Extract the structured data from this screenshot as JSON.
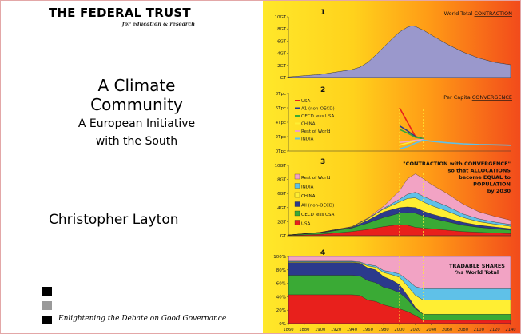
{
  "cover": {
    "publisher": "THE FEDERAL TRUST",
    "publisher_tagline": "for education & research",
    "title_line1": "A Climate",
    "title_line2": "Community",
    "subtitle_line1": "A European Initiative",
    "subtitle_line2": "with the South",
    "author": "Christopher Layton",
    "motto": "Enlightening the Debate on Good Governance"
  },
  "colors": {
    "square_1": "#000000",
    "square_2": "#9a9a9a",
    "square_3": "#000000",
    "contraction_fill": "#9a98cc",
    "usa": "#e8201c",
    "a1_non_oecd": "#2b3a8c",
    "oecd_less_usa": "#3aaa35",
    "china": "#ffee33",
    "india": "#5fc1e8",
    "rest_of_world": "#f2a3c4",
    "highlight": "#ffee33"
  },
  "chart_data": [
    {
      "type": "area",
      "panel_number": "1",
      "title": "World Total ",
      "title_underlined": "CONTRACTION",
      "ylim": [
        0,
        10
      ],
      "y_ticks": [
        "10GT",
        "8GT",
        "6GT",
        "4GT",
        "2GT",
        "GT"
      ],
      "x": [
        1860,
        1880,
        1900,
        1920,
        1940,
        1950,
        1960,
        1970,
        1980,
        1990,
        2000,
        2010,
        2015,
        2020,
        2030,
        2040,
        2060,
        2080,
        2100,
        2120,
        2140
      ],
      "values": [
        0.1,
        0.3,
        0.5,
        0.9,
        1.3,
        1.7,
        2.5,
        3.7,
        5.0,
        6.3,
        7.5,
        8.3,
        8.5,
        8.4,
        7.8,
        7.0,
        5.5,
        4.2,
        3.2,
        2.5,
        2.1
      ]
    },
    {
      "type": "line",
      "panel_number": "2",
      "title": "Per Capita ",
      "title_underlined": "CONVERGENCE",
      "ylim": [
        0,
        8
      ],
      "y_ticks": [
        "8Tpc",
        "6Tpc",
        "4Tpc",
        "2Tpc",
        "0Tpc"
      ],
      "legend": [
        "USA",
        "A1 (non-OECD)",
        "OECD less USA",
        "CHINA",
        "Rest of World",
        "INDIA"
      ],
      "series": [
        {
          "name": "USA",
          "x": [
            2000,
            2010,
            2020,
            2030
          ],
          "values": [
            6.0,
            4.0,
            2.0,
            1.7
          ]
        },
        {
          "name": "A1 (non-OECD)",
          "x": [
            2000,
            2010,
            2020,
            2030
          ],
          "values": [
            3.5,
            2.8,
            2.0,
            1.7
          ]
        },
        {
          "name": "OECD less USA",
          "x": [
            2000,
            2010,
            2020,
            2030
          ],
          "values": [
            3.0,
            2.5,
            1.9,
            1.7
          ]
        },
        {
          "name": "CHINA",
          "x": [
            2000,
            2010,
            2020,
            2030
          ],
          "values": [
            0.8,
            1.1,
            1.4,
            1.6
          ]
        },
        {
          "name": "Rest of World",
          "x": [
            2000,
            2010,
            2020,
            2030
          ],
          "values": [
            1.2,
            1.3,
            1.5,
            1.6
          ]
        },
        {
          "name": "INDIA",
          "x": [
            2000,
            2010,
            2020,
            2030,
            2040,
            2060,
            2080,
            2100,
            2120,
            2140
          ],
          "values": [
            0.3,
            0.6,
            1.1,
            1.5,
            1.35,
            1.15,
            1.0,
            0.9,
            0.85,
            0.8
          ]
        }
      ]
    },
    {
      "type": "area",
      "panel_number": "3",
      "annotation": [
        "\"CONTRACTION with CONVERGENCE\"",
        "so that ALLOCATIONS",
        "become EQUAL to",
        "POPULATION",
        "by 2030"
      ],
      "ylim": [
        0,
        10
      ],
      "y_ticks": [
        "10GT",
        "8GT",
        "6GT",
        "4GT",
        "2GT",
        "GT"
      ],
      "legend": [
        "Rest of World",
        "INDIA",
        "CHINA",
        "All (non-OECD)",
        "OECD less USA",
        "USA"
      ],
      "x": [
        1860,
        1900,
        1940,
        1960,
        1980,
        2000,
        2010,
        2020,
        2030,
        2040,
        2060,
        2080,
        2100,
        2120,
        2140
      ],
      "series": [
        {
          "name": "USA",
          "values": [
            0.05,
            0.2,
            0.6,
            0.9,
            1.3,
            1.6,
            1.5,
            1.2,
            1.1,
            1.0,
            0.8,
            0.6,
            0.5,
            0.4,
            0.3
          ]
        },
        {
          "name": "OECD less USA",
          "values": [
            0.05,
            0.2,
            0.5,
            0.9,
            1.3,
            1.6,
            1.8,
            2.0,
            1.7,
            1.5,
            1.2,
            0.9,
            0.7,
            0.6,
            0.5
          ]
        },
        {
          "name": "All (non-OECD)",
          "values": [
            0.0,
            0.05,
            0.1,
            0.4,
            0.8,
            0.8,
            0.8,
            0.8,
            0.7,
            0.6,
            0.5,
            0.4,
            0.3,
            0.25,
            0.2
          ]
        },
        {
          "name": "CHINA",
          "values": [
            0.0,
            0.02,
            0.05,
            0.2,
            0.4,
            0.8,
            1.2,
            1.4,
            1.3,
            1.2,
            1.0,
            0.7,
            0.5,
            0.4,
            0.35
          ]
        },
        {
          "name": "INDIA",
          "values": [
            0.0,
            0.01,
            0.02,
            0.05,
            0.1,
            0.4,
            0.6,
            0.8,
            0.8,
            0.8,
            0.7,
            0.5,
            0.4,
            0.3,
            0.25
          ]
        },
        {
          "name": "Rest of World",
          "values": [
            0.0,
            0.02,
            0.03,
            0.06,
            0.3,
            1.2,
            2.2,
            2.6,
            2.5,
            2.2,
            1.8,
            1.4,
            1.0,
            0.8,
            0.6
          ]
        }
      ]
    },
    {
      "type": "area",
      "panel_number": "4",
      "annotation": [
        "TRADABLE SHARES",
        "%s World Total"
      ],
      "ylim": [
        0,
        100
      ],
      "y_ticks": [
        "100%",
        "80%",
        "60%",
        "40%",
        "20%",
        "0%"
      ],
      "x": [
        1860,
        1940,
        1950,
        1960,
        1970,
        1980,
        1990,
        2000,
        2010,
        2020,
        2030,
        2140
      ],
      "x_ticks": [
        1860,
        1880,
        1900,
        1920,
        1940,
        1960,
        1980,
        2000,
        2020,
        2040,
        2060,
        2080,
        2100,
        2120,
        2140
      ],
      "series": [
        {
          "name": "USA",
          "values": [
            43,
            43,
            42,
            35,
            33,
            28,
            25,
            22,
            18,
            12,
            5,
            5
          ]
        },
        {
          "name": "OECD less USA",
          "values": [
            29,
            29,
            29,
            29,
            28,
            26,
            26,
            24,
            18,
            10,
            9,
            9
          ]
        },
        {
          "name": "All (non-OECD)",
          "values": [
            19,
            19,
            19,
            19,
            19,
            16,
            14,
            12,
            6,
            2,
            0,
            0
          ]
        },
        {
          "name": "CHINA",
          "values": [
            1,
            1,
            1,
            3,
            4,
            6,
            8,
            11,
            14,
            18,
            21,
            21
          ]
        },
        {
          "name": "INDIA",
          "values": [
            1,
            1,
            1,
            2,
            2,
            3,
            4,
            5,
            9,
            13,
            17,
            17
          ]
        },
        {
          "name": "Rest of World",
          "values": [
            7,
            7,
            8,
            12,
            14,
            21,
            23,
            26,
            35,
            45,
            48,
            48
          ]
        }
      ]
    }
  ]
}
